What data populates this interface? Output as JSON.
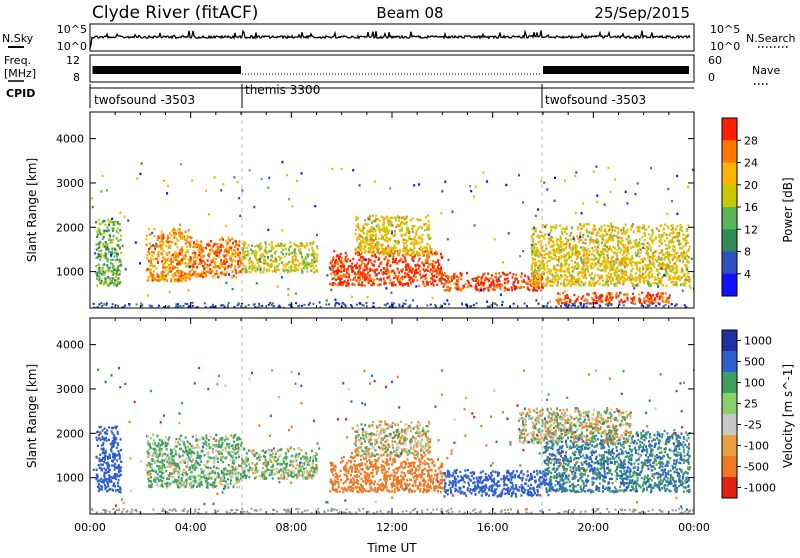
{
  "header": {
    "station": "Clyde River (fitACF)",
    "beam": "Beam 08",
    "date": "25/Sep/2015"
  },
  "panels": {
    "nsky_label": "N.Sky",
    "nsky_ticks": [
      "10^5",
      "10^0"
    ],
    "nsky_right_ticks": [
      "10^5",
      "10^0"
    ],
    "nsearch_label": "N.Search",
    "freq_label_top": "Freq.",
    "freq_label_unit": "[MHz]",
    "freq_ticks": [
      "12",
      "8"
    ],
    "nave_ticks": [
      "60",
      "0"
    ],
    "nave_label": "Nave",
    "cpid_label": "CPID",
    "cpid_segments": [
      {
        "name": "twofsound -3503",
        "start": 0.5,
        "end": 6.0
      },
      {
        "name": "themis 3300",
        "start": 6.0,
        "end": 18.0
      },
      {
        "name": "twofsound -3503",
        "start": 18.0,
        "end": 24.0
      }
    ]
  },
  "colors": {
    "power": [
      "#1010ff",
      "#3050c0",
      "#2e8b57",
      "#5ab45a",
      "#c8c800",
      "#ffb400",
      "#ff7800",
      "#ff2000"
    ],
    "velocity": [
      "#2030a0",
      "#2f5fcf",
      "#3f9f5f",
      "#8ad06a",
      "#c8c8c8",
      "#eaa040",
      "#f07820",
      "#e02010"
    ],
    "ground": "#9a9a9a"
  },
  "chart_data": [
    {
      "type": "heatmap",
      "title": "Power",
      "ylabel": "Slant Range [km]",
      "xlabel": "",
      "xlim": [
        "00:00",
        "24:00"
      ],
      "ylim": [
        180,
        4600
      ],
      "yticks": [
        "1000",
        "2000",
        "3000",
        "4000"
      ],
      "colorbar": {
        "label": "Power [dB]",
        "ticks": [
          "4",
          "8",
          "12",
          "16",
          "20",
          "24",
          "28"
        ],
        "range": [
          0,
          32
        ]
      },
      "scatter_bands": [
        {
          "t_start": 0.2,
          "t_end": 1.2,
          "r_low": 700,
          "r_high": 2200,
          "value": 14
        },
        {
          "t_start": 2.2,
          "t_end": 4.0,
          "r_low": 800,
          "r_high": 2000,
          "value": 24
        },
        {
          "t_start": 4.0,
          "t_end": 6.0,
          "r_low": 900,
          "r_high": 1800,
          "value": 26
        },
        {
          "t_start": 6.0,
          "t_end": 9.0,
          "r_low": 1000,
          "r_high": 1700,
          "value": 18
        },
        {
          "t_start": 9.5,
          "t_end": 14.0,
          "r_low": 700,
          "r_high": 1500,
          "value": 30
        },
        {
          "t_start": 10.5,
          "t_end": 13.5,
          "r_low": 1400,
          "r_high": 2300,
          "value": 20
        },
        {
          "t_start": 14.0,
          "t_end": 18.0,
          "r_low": 600,
          "r_high": 1000,
          "value": 30
        },
        {
          "t_start": 17.5,
          "t_end": 23.8,
          "r_low": 700,
          "r_high": 2100,
          "value": 20
        },
        {
          "t_start": 18.5,
          "t_end": 23.0,
          "r_low": 300,
          "r_high": 550,
          "value": 28
        }
      ]
    },
    {
      "type": "heatmap",
      "title": "Velocity",
      "ylabel": "Slant Range [km]",
      "xlabel": "Time UT",
      "xlim": [
        "00:00",
        "24:00"
      ],
      "xticks": [
        "00:00",
        "04:00",
        "08:00",
        "12:00",
        "16:00",
        "20:00",
        "00:00"
      ],
      "ylim": [
        180,
        4600
      ],
      "yticks": [
        "1000",
        "2000",
        "3000",
        "4000"
      ],
      "colorbar": {
        "label": "Velocity [m s^-1]",
        "ticks": [
          "1000",
          "500",
          "100",
          "25",
          "-25",
          "-100",
          "-500",
          "-1000"
        ]
      },
      "scatter_bands": [
        {
          "t_start": 0.2,
          "t_end": 1.2,
          "r_low": 700,
          "r_high": 2200,
          "value": 500
        },
        {
          "t_start": 2.2,
          "t_end": 6.0,
          "r_low": 800,
          "r_high": 2000,
          "value": 100
        },
        {
          "t_start": 6.0,
          "t_end": 9.0,
          "r_low": 1000,
          "r_high": 1700,
          "value": 50
        },
        {
          "t_start": 9.5,
          "t_end": 14.0,
          "r_low": 700,
          "r_high": 1500,
          "value": -300
        },
        {
          "t_start": 10.5,
          "t_end": 13.5,
          "r_low": 1500,
          "r_high": 2300,
          "value": 0
        },
        {
          "t_start": 14.0,
          "t_end": 18.0,
          "r_low": 600,
          "r_high": 1200,
          "value": 600
        },
        {
          "t_start": 18.0,
          "t_end": 23.8,
          "r_low": 700,
          "r_high": 2100,
          "value": 300
        },
        {
          "t_start": 17.0,
          "t_end": 21.5,
          "r_low": 1800,
          "r_high": 2600,
          "value": 0
        }
      ]
    }
  ]
}
